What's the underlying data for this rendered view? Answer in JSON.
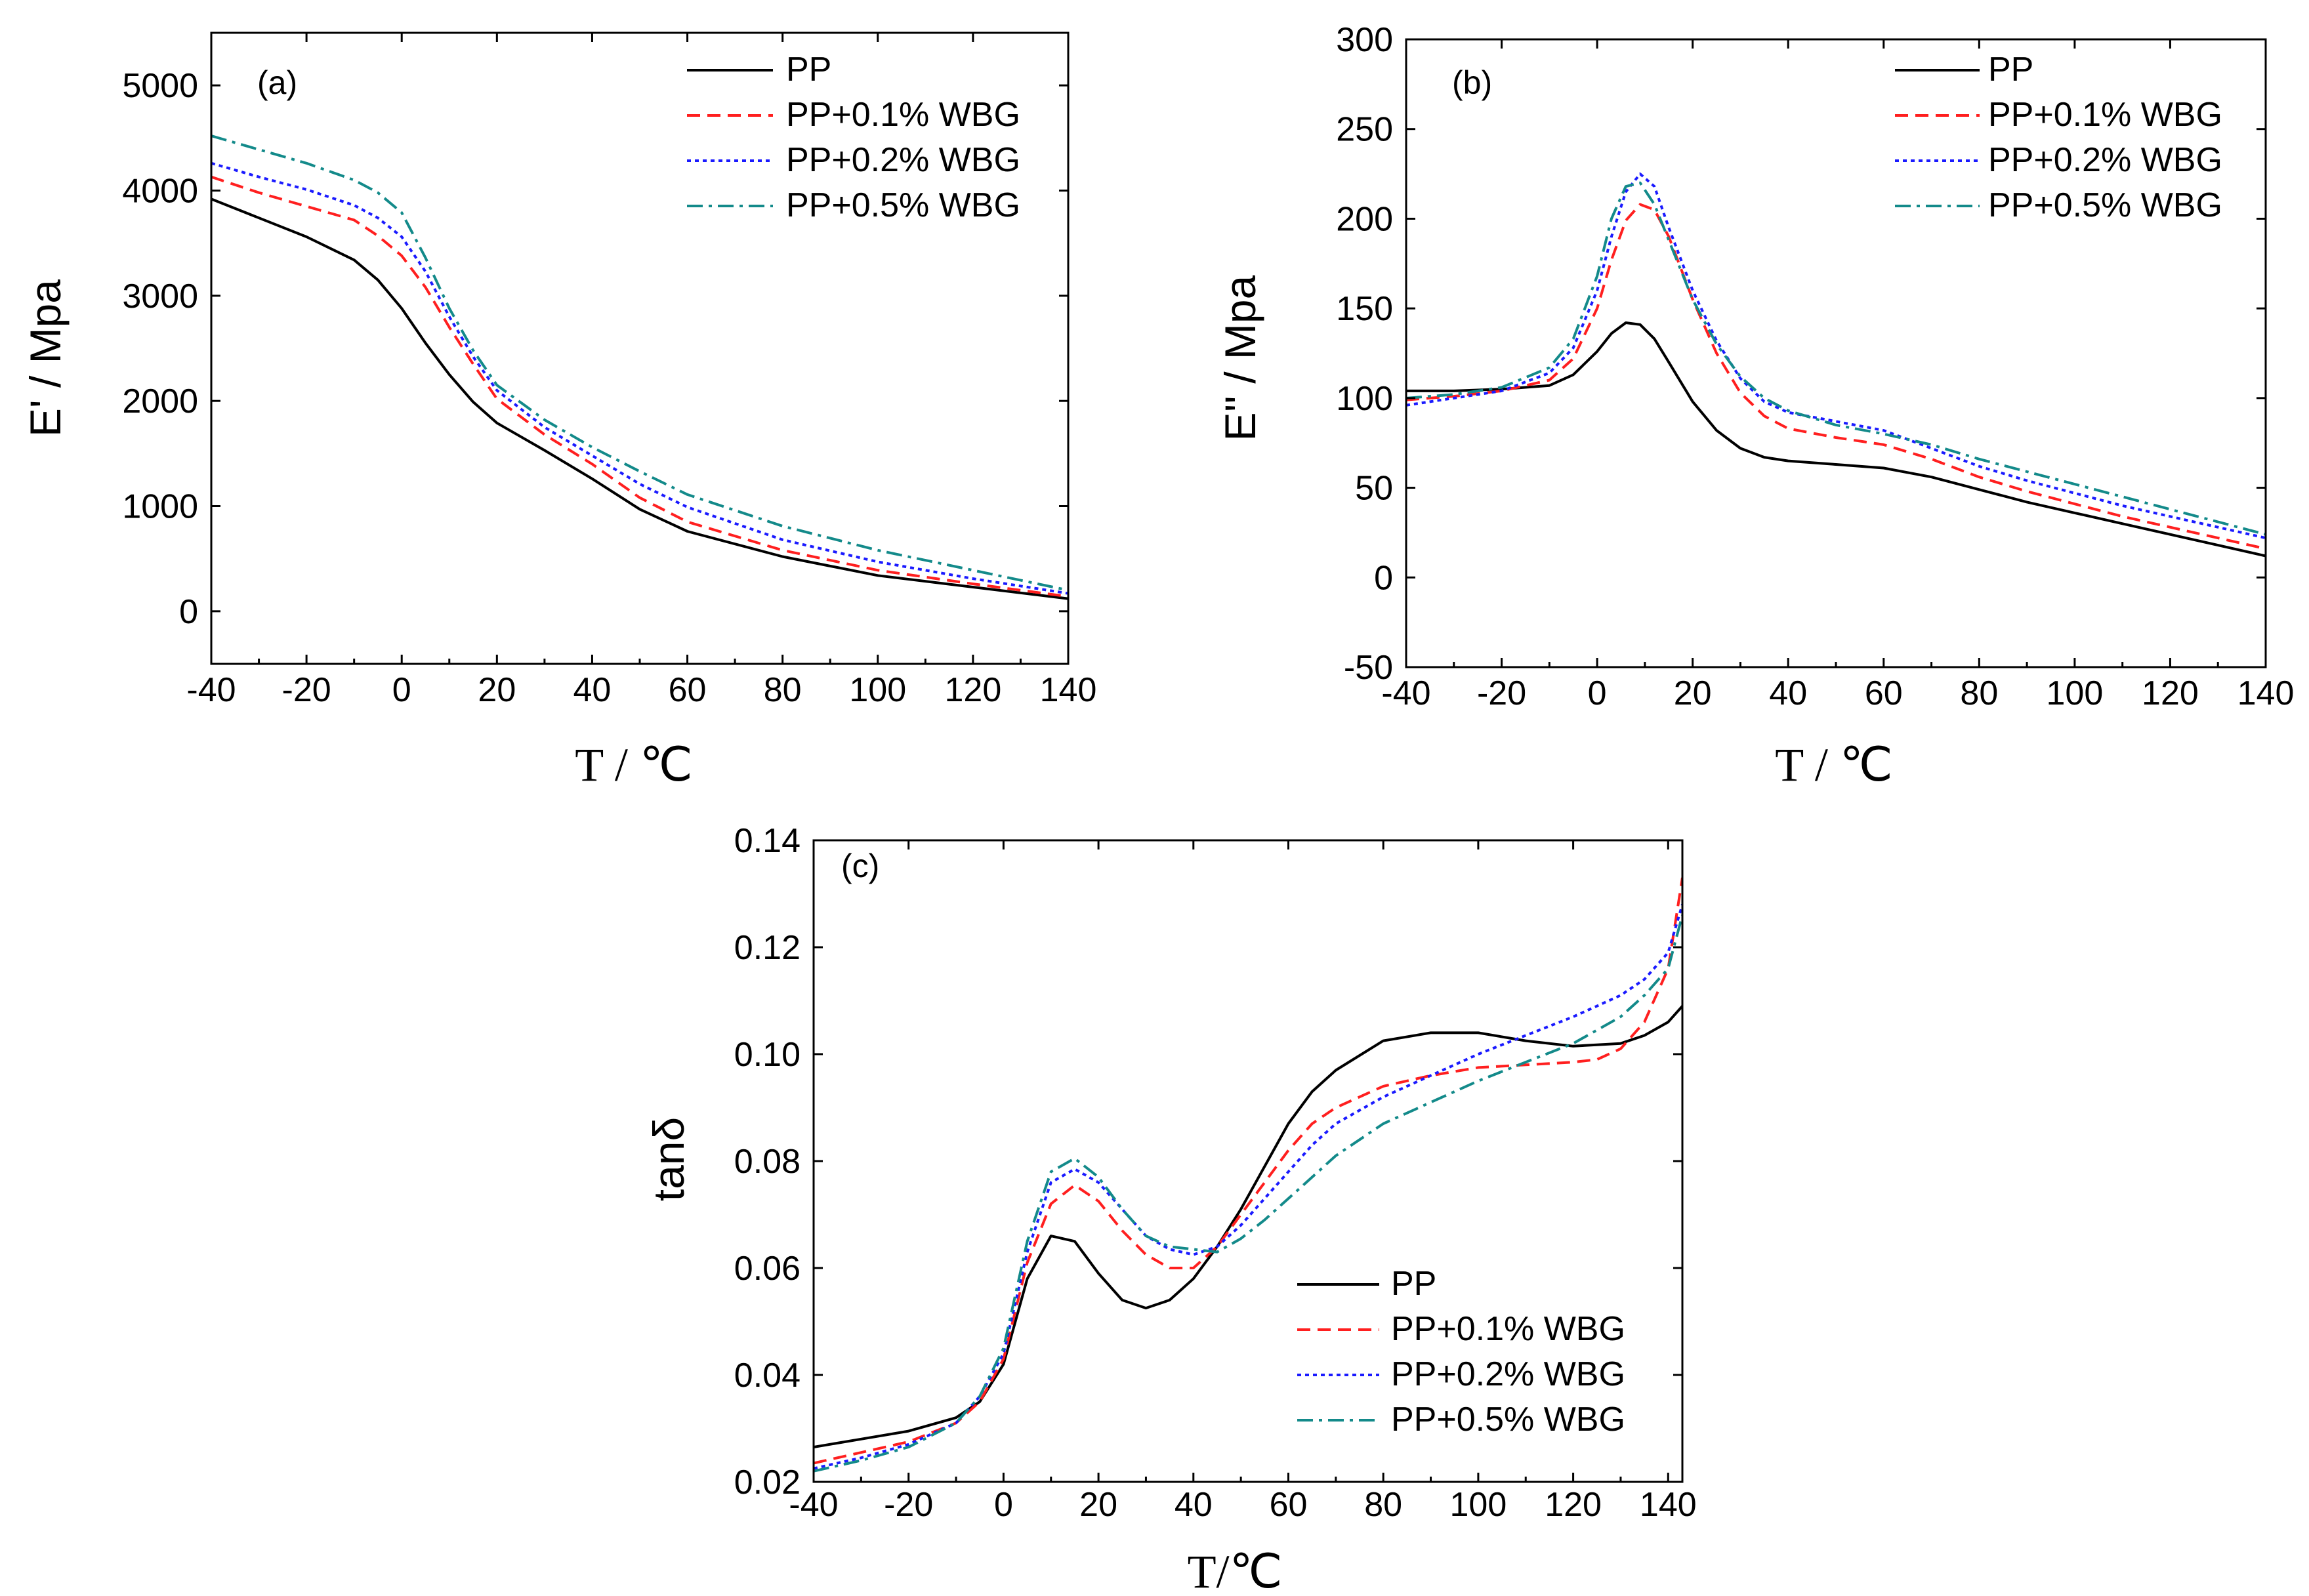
{
  "colors": {
    "PP": "#000000",
    "PP+0.1% WBG": "#ff1f1f",
    "PP+0.2% WBG": "#1a1aff",
    "PP+0.5% WBG": "#138a8a"
  },
  "chart_data": [
    {
      "type": "line",
      "panel": "(a)",
      "ylabel": "E' / Mpa",
      "xlabel": "T / ℃",
      "xlim": [
        -40,
        140
      ],
      "ylim": [
        -500,
        5500
      ],
      "xticks": [
        -40,
        -20,
        0,
        20,
        40,
        60,
        80,
        100,
        120,
        140
      ],
      "yticks": [
        0,
        1000,
        2000,
        3000,
        4000,
        5000
      ],
      "legend_position": "top-right",
      "series": [
        {
          "name": "PP",
          "style": "solid",
          "x": [
            -40,
            -30,
            -20,
            -10,
            -5,
            0,
            5,
            10,
            15,
            20,
            30,
            40,
            50,
            60,
            80,
            100,
            120,
            140
          ],
          "y": [
            3920,
            3740,
            3560,
            3340,
            3150,
            2880,
            2550,
            2250,
            1990,
            1790,
            1530,
            1260,
            970,
            760,
            520,
            340,
            230,
            120
          ]
        },
        {
          "name": "PP+0.1% WBG",
          "style": "dash",
          "x": [
            -40,
            -30,
            -20,
            -10,
            -5,
            0,
            5,
            10,
            15,
            20,
            30,
            40,
            50,
            60,
            80,
            100,
            120,
            140
          ],
          "y": [
            4130,
            3980,
            3850,
            3720,
            3570,
            3380,
            3080,
            2700,
            2350,
            2020,
            1680,
            1400,
            1080,
            850,
            580,
            390,
            260,
            140
          ]
        },
        {
          "name": "PP+0.2% WBG",
          "style": "dot",
          "x": [
            -40,
            -30,
            -20,
            -10,
            -5,
            0,
            5,
            10,
            15,
            20,
            30,
            40,
            50,
            60,
            80,
            100,
            120,
            140
          ],
          "y": [
            4260,
            4130,
            4010,
            3860,
            3740,
            3560,
            3230,
            2800,
            2420,
            2100,
            1750,
            1480,
            1210,
            990,
            680,
            470,
            310,
            170
          ]
        },
        {
          "name": "PP+0.5% WBG",
          "style": "dashdot",
          "x": [
            -40,
            -30,
            -20,
            -10,
            -5,
            0,
            5,
            10,
            15,
            20,
            30,
            40,
            50,
            60,
            80,
            100,
            120,
            140
          ],
          "y": [
            4520,
            4390,
            4260,
            4100,
            3980,
            3790,
            3360,
            2880,
            2480,
            2150,
            1820,
            1560,
            1330,
            1110,
            810,
            580,
            390,
            200
          ]
        }
      ]
    },
    {
      "type": "line",
      "panel": "(b)",
      "ylabel": "E'' / Mpa",
      "xlabel": "T / ℃",
      "xlim": [
        -40,
        140
      ],
      "ylim": [
        -50,
        300
      ],
      "xticks": [
        -40,
        -20,
        0,
        20,
        40,
        60,
        80,
        100,
        120,
        140
      ],
      "yticks": [
        -50,
        0,
        50,
        100,
        150,
        200,
        250,
        300
      ],
      "legend_position": "top-right",
      "series": [
        {
          "name": "PP",
          "style": "solid",
          "x": [
            -40,
            -30,
            -20,
            -10,
            -5,
            0,
            3,
            6,
            9,
            12,
            15,
            20,
            25,
            30,
            35,
            40,
            50,
            60,
            70,
            80,
            90,
            100,
            110,
            120,
            130,
            140
          ],
          "y": [
            104,
            104,
            105,
            107,
            113,
            126,
            136,
            142,
            141,
            133,
            120,
            98,
            82,
            72,
            67,
            65,
            63,
            61,
            56,
            49,
            42,
            36,
            30,
            24,
            18,
            12
          ]
        },
        {
          "name": "PP+0.1% WBG",
          "style": "dash",
          "x": [
            -40,
            -30,
            -20,
            -10,
            -5,
            0,
            3,
            6,
            9,
            12,
            15,
            20,
            25,
            30,
            35,
            40,
            50,
            60,
            70,
            80,
            90,
            100,
            110,
            120,
            130,
            140
          ],
          "y": [
            99,
            101,
            104,
            110,
            122,
            150,
            177,
            199,
            208,
            205,
            190,
            155,
            125,
            103,
            90,
            83,
            78,
            74,
            66,
            56,
            48,
            41,
            34,
            28,
            22,
            16
          ]
        },
        {
          "name": "PP+0.2% WBG",
          "style": "dot",
          "x": [
            -40,
            -30,
            -20,
            -10,
            -5,
            0,
            3,
            6,
            9,
            12,
            15,
            20,
            25,
            30,
            35,
            40,
            50,
            60,
            70,
            80,
            90,
            100,
            110,
            120,
            130,
            140
          ],
          "y": [
            96,
            100,
            104,
            114,
            128,
            160,
            190,
            215,
            225,
            218,
            195,
            160,
            132,
            111,
            98,
            92,
            87,
            82,
            72,
            62,
            54,
            47,
            40,
            34,
            28,
            22
          ]
        },
        {
          "name": "PP+0.5% WBG",
          "style": "dashdot",
          "x": [
            -40,
            -30,
            -20,
            -10,
            -5,
            0,
            3,
            6,
            9,
            12,
            15,
            20,
            25,
            30,
            35,
            40,
            50,
            60,
            70,
            80,
            90,
            100,
            110,
            120,
            130,
            140
          ],
          "y": [
            100,
            102,
            106,
            117,
            133,
            168,
            200,
            218,
            220,
            208,
            188,
            155,
            130,
            112,
            100,
            93,
            85,
            80,
            74,
            66,
            59,
            52,
            45,
            38,
            31,
            24
          ]
        }
      ]
    },
    {
      "type": "line",
      "panel": "(c)",
      "ylabel": "tanδ",
      "xlabel": "T/℃",
      "xlim": [
        -40,
        143
      ],
      "ylim": [
        0.02,
        0.14
      ],
      "xticks": [
        -40,
        -20,
        0,
        20,
        40,
        60,
        80,
        100,
        120,
        140
      ],
      "yticks": [
        0.02,
        0.04,
        0.06,
        0.08,
        0.1,
        0.12,
        0.14
      ],
      "legend_position": "bottom-right",
      "series": [
        {
          "name": "PP",
          "style": "solid",
          "x": [
            -40,
            -30,
            -20,
            -10,
            -5,
            0,
            5,
            10,
            15,
            20,
            25,
            30,
            35,
            40,
            45,
            50,
            55,
            60,
            65,
            70,
            80,
            90,
            100,
            110,
            120,
            130,
            135,
            140,
            143
          ],
          "y": [
            0.0265,
            0.028,
            0.0295,
            0.032,
            0.035,
            0.042,
            0.058,
            0.066,
            0.065,
            0.059,
            0.054,
            0.0525,
            0.054,
            0.058,
            0.064,
            0.071,
            0.079,
            0.087,
            0.093,
            0.097,
            0.1025,
            0.104,
            0.104,
            0.1025,
            0.1015,
            0.102,
            0.1035,
            0.106,
            0.109
          ]
        },
        {
          "name": "PP+0.1% WBG",
          "style": "dash",
          "x": [
            -40,
            -30,
            -20,
            -10,
            -5,
            0,
            5,
            10,
            15,
            20,
            25,
            30,
            35,
            40,
            45,
            50,
            55,
            60,
            65,
            70,
            80,
            90,
            100,
            110,
            120,
            125,
            130,
            135,
            140,
            143
          ],
          "y": [
            0.0235,
            0.0255,
            0.0275,
            0.031,
            0.035,
            0.043,
            0.061,
            0.072,
            0.0755,
            0.0725,
            0.067,
            0.0625,
            0.06,
            0.06,
            0.064,
            0.07,
            0.076,
            0.082,
            0.087,
            0.09,
            0.094,
            0.096,
            0.0975,
            0.098,
            0.0985,
            0.099,
            0.101,
            0.106,
            0.116,
            0.133
          ]
        },
        {
          "name": "PP+0.2% WBG",
          "style": "dot",
          "x": [
            -40,
            -30,
            -20,
            -10,
            -5,
            0,
            5,
            10,
            15,
            20,
            25,
            30,
            35,
            40,
            45,
            50,
            55,
            60,
            65,
            70,
            80,
            90,
            100,
            110,
            120,
            130,
            135,
            140,
            143
          ],
          "y": [
            0.0225,
            0.0245,
            0.027,
            0.031,
            0.036,
            0.044,
            0.063,
            0.076,
            0.0785,
            0.076,
            0.071,
            0.066,
            0.0635,
            0.0625,
            0.064,
            0.068,
            0.073,
            0.078,
            0.083,
            0.087,
            0.092,
            0.096,
            0.1,
            0.1035,
            0.107,
            0.111,
            0.114,
            0.119,
            0.128
          ]
        },
        {
          "name": "PP+0.5% WBG",
          "style": "dashdot",
          "x": [
            -40,
            -30,
            -20,
            -10,
            -5,
            0,
            5,
            10,
            15,
            20,
            25,
            30,
            35,
            40,
            45,
            50,
            55,
            60,
            65,
            70,
            80,
            90,
            100,
            110,
            120,
            130,
            135,
            140,
            143
          ],
          "y": [
            0.022,
            0.024,
            0.0265,
            0.031,
            0.036,
            0.045,
            0.065,
            0.078,
            0.0805,
            0.077,
            0.071,
            0.066,
            0.064,
            0.0635,
            0.063,
            0.0655,
            0.069,
            0.073,
            0.077,
            0.081,
            0.087,
            0.091,
            0.095,
            0.0985,
            0.102,
            0.107,
            0.111,
            0.116,
            0.126
          ]
        }
      ]
    }
  ]
}
